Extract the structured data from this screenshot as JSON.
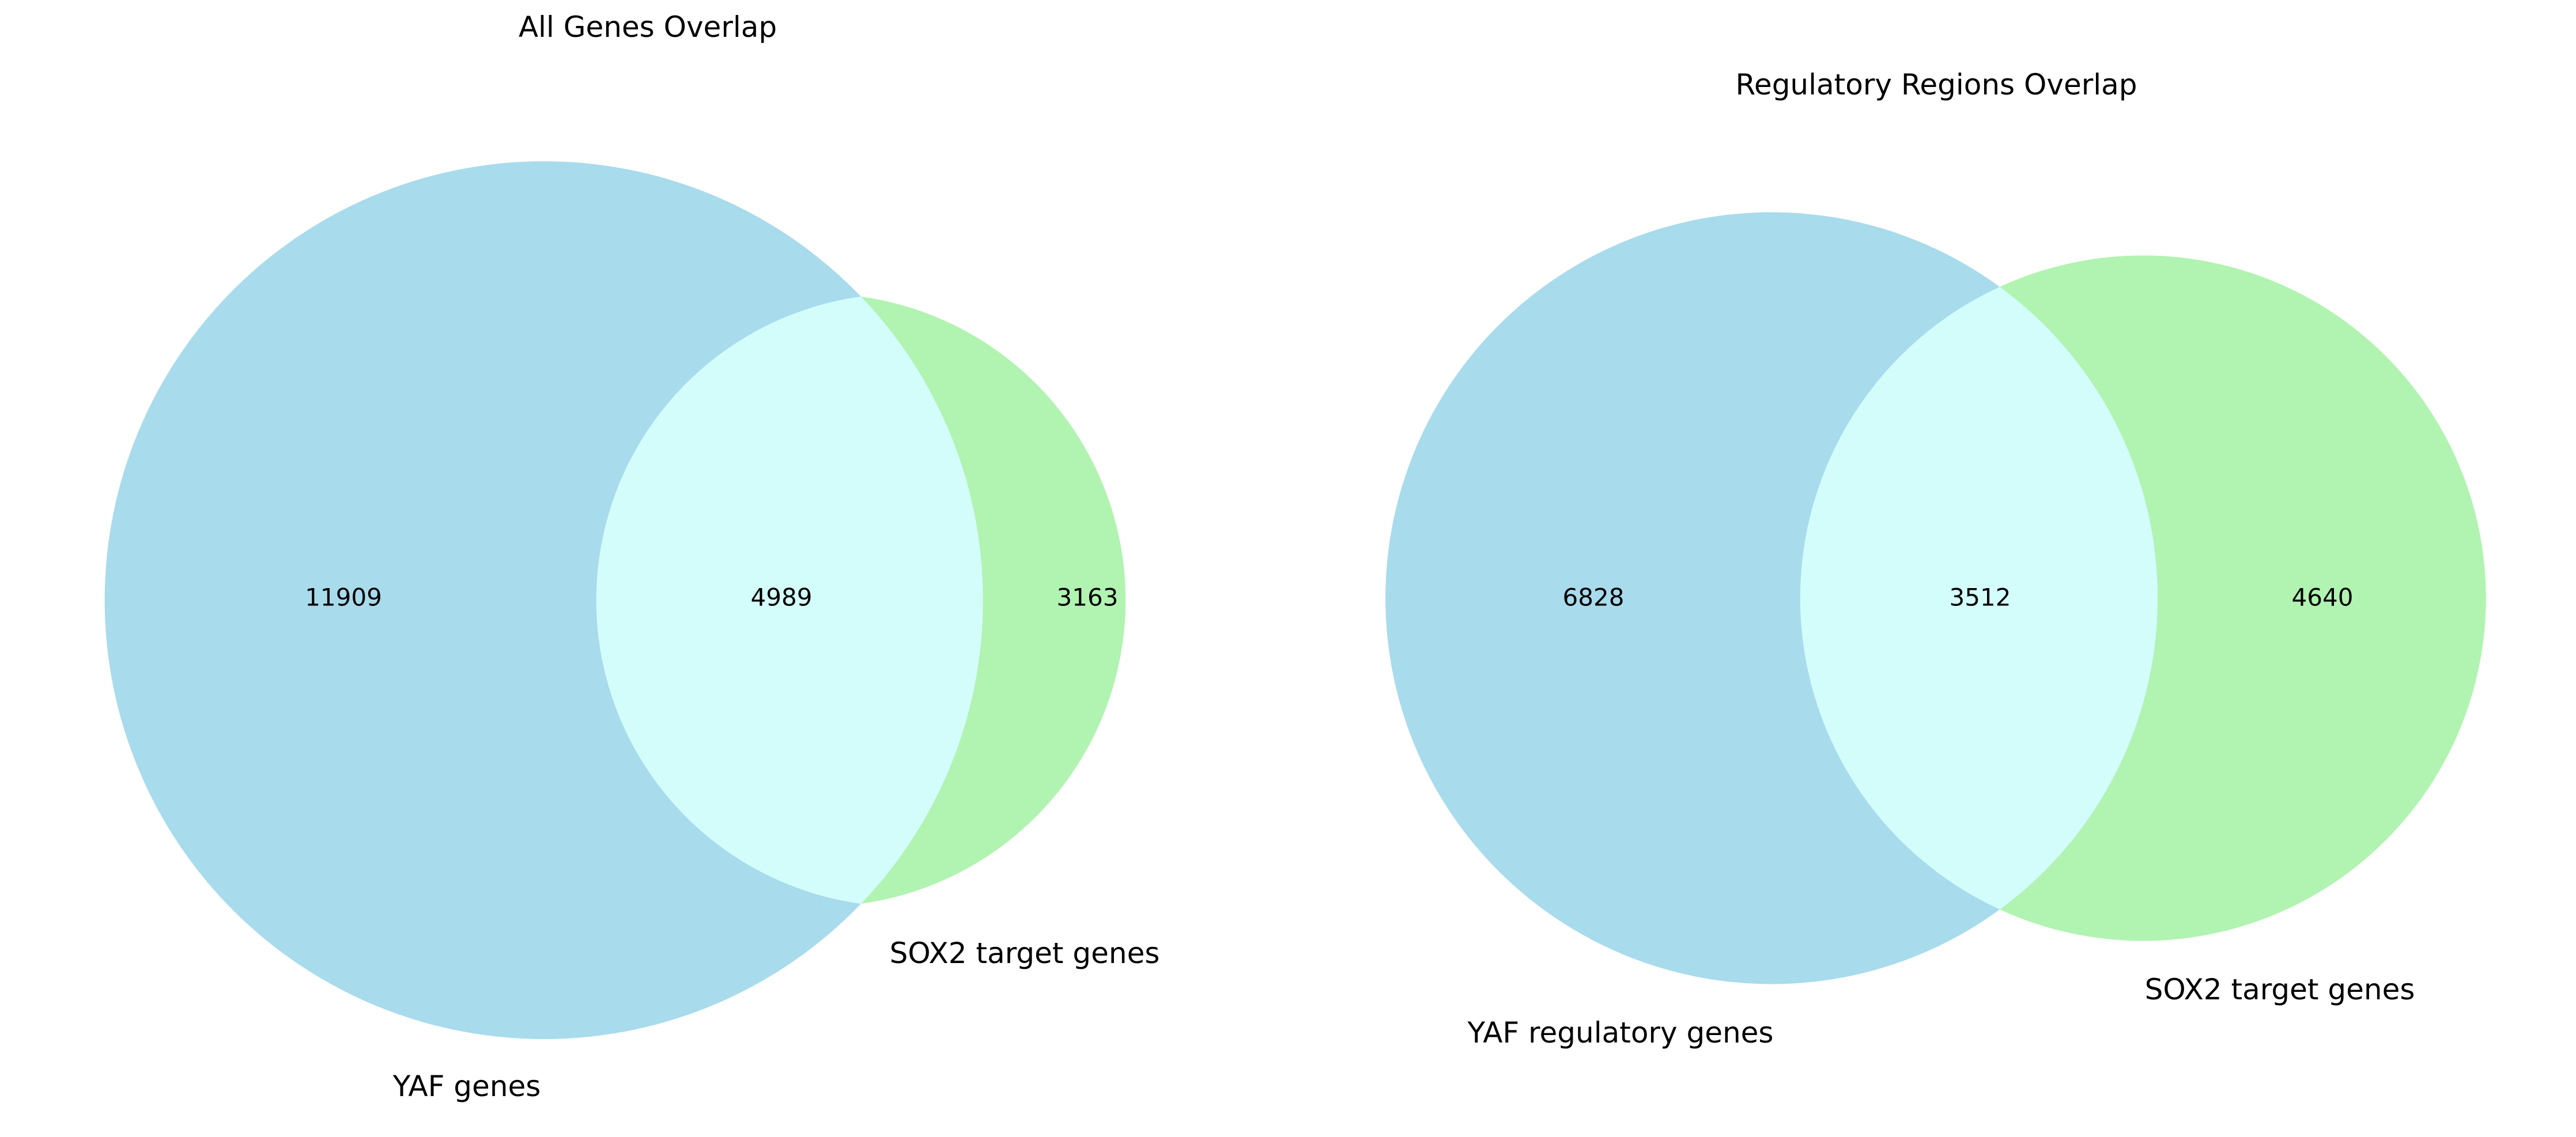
{
  "chart_data": [
    {
      "type": "venn",
      "title": "All Genes Overlap",
      "sets": [
        {
          "label": "YAF genes",
          "color": "#a8dbec"
        },
        {
          "label": "SOX2 target genes",
          "color": "#b1f3b1"
        }
      ],
      "intersection_color": "#d3fdfb",
      "regions": {
        "left_only": "11909",
        "both": "4989",
        "right_only": "3163"
      }
    },
    {
      "type": "venn",
      "title": "Regulatory Regions Overlap",
      "sets": [
        {
          "label": "YAF regulatory genes",
          "color": "#a8dbec"
        },
        {
          "label": "SOX2 target genes",
          "color": "#b1f3b1"
        }
      ],
      "intersection_color": "#d3fdfb",
      "regions": {
        "left_only": "6828",
        "both": "3512",
        "right_only": "4640"
      }
    }
  ]
}
